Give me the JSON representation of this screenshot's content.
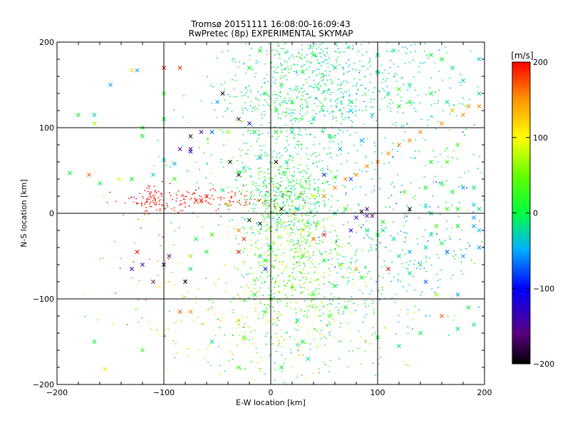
{
  "chart_data": {
    "type": "scatter",
    "title": "Tromsø 20151111 16:08:00-16:09:43",
    "subtitle": "RwPretec (8p) EXPERIMENTAL SKYMAP",
    "xlabel": "E-W location [km]",
    "ylabel": "N-S location [km]",
    "xlim": [
      -200,
      200
    ],
    "ylim": [
      -200,
      200
    ],
    "x_ticks": [
      -200,
      -100,
      0,
      100,
      200
    ],
    "y_ticks": [
      -200,
      -100,
      0,
      100,
      200
    ],
    "grid": true,
    "colorbar": {
      "label": "[m/s]",
      "range": [
        -200,
        200
      ],
      "ticks": [
        200,
        100,
        0,
        -100,
        -200
      ],
      "colormap": [
        "#000000",
        "#6a008a",
        "#0000ff",
        "#00c8ff",
        "#00ff00",
        "#ffff00",
        "#ff8000",
        "#ff0000"
      ]
    },
    "series": [
      {
        "marker": "x",
        "points": [
          {
            "x": -188,
            "y": 47,
            "v": 20
          },
          {
            "x": -180,
            "y": 115,
            "v": 20
          },
          {
            "x": -165,
            "y": 105,
            "v": 60
          },
          {
            "x": -165,
            "y": 115,
            "v": -20
          },
          {
            "x": -150,
            "y": 150,
            "v": -40
          },
          {
            "x": -130,
            "y": 167,
            "v": 100
          },
          {
            "x": -125,
            "y": 167,
            "v": -40
          },
          {
            "x": -120,
            "y": 90,
            "v": 20
          },
          {
            "x": -100,
            "y": 62,
            "v": -20
          },
          {
            "x": -90,
            "y": 58,
            "v": -40
          },
          {
            "x": -100,
            "y": 170,
            "v": 200
          },
          {
            "x": -85,
            "y": 170,
            "v": 180
          },
          {
            "x": -75,
            "y": 90,
            "v": -180
          },
          {
            "x": -65,
            "y": 95,
            "v": -120
          },
          {
            "x": -85,
            "y": 75,
            "v": -140
          },
          {
            "x": -75,
            "y": 75,
            "v": -160
          },
          {
            "x": -75,
            "y": 72,
            "v": -100
          },
          {
            "x": -55,
            "y": 95,
            "v": -60
          },
          {
            "x": -45,
            "y": 140,
            "v": -200
          },
          {
            "x": -50,
            "y": 130,
            "v": -40
          },
          {
            "x": -30,
            "y": 110,
            "v": -160
          },
          {
            "x": -20,
            "y": 105,
            "v": -120
          },
          {
            "x": -40,
            "y": 95,
            "v": 60
          },
          {
            "x": -38,
            "y": 60,
            "v": -200
          },
          {
            "x": -30,
            "y": 45,
            "v": -200
          },
          {
            "x": -30,
            "y": 48,
            "v": 20
          },
          {
            "x": -25,
            "y": 53,
            "v": -20
          },
          {
            "x": -10,
            "y": 65,
            "v": -40
          },
          {
            "x": 5,
            "y": 60,
            "v": -200
          },
          {
            "x": 15,
            "y": 60,
            "v": 0
          },
          {
            "x": -45,
            "y": 27,
            "v": 0
          },
          {
            "x": -60,
            "y": 20,
            "v": 200
          },
          {
            "x": -65,
            "y": 15,
            "v": 200
          },
          {
            "x": -70,
            "y": 15,
            "v": 180
          },
          {
            "x": -40,
            "y": 10,
            "v": 60
          },
          {
            "x": -20,
            "y": -8,
            "v": -200
          },
          {
            "x": -30,
            "y": -20,
            "v": 140
          },
          {
            "x": -25,
            "y": -30,
            "v": 180
          },
          {
            "x": -10,
            "y": -12,
            "v": -200
          },
          {
            "x": 10,
            "y": 5,
            "v": -200
          },
          {
            "x": 30,
            "y": -20,
            "v": 100
          },
          {
            "x": 40,
            "y": -30,
            "v": 160
          },
          {
            "x": 50,
            "y": -25,
            "v": 200
          },
          {
            "x": 75,
            "y": -20,
            "v": -100
          },
          {
            "x": 80,
            "y": -5,
            "v": -120
          },
          {
            "x": 90,
            "y": 5,
            "v": -140
          },
          {
            "x": 90,
            "y": -3,
            "v": -140
          },
          {
            "x": 95,
            "y": -3,
            "v": -160
          },
          {
            "x": 85,
            "y": 2,
            "v": -200
          },
          {
            "x": 130,
            "y": 5,
            "v": -200
          },
          {
            "x": 145,
            "y": 8,
            "v": -20
          },
          {
            "x": 160,
            "y": 35,
            "v": 20
          },
          {
            "x": 170,
            "y": 25,
            "v": 20
          },
          {
            "x": 180,
            "y": 30,
            "v": -40
          },
          {
            "x": 190,
            "y": -15,
            "v": -40
          },
          {
            "x": 175,
            "y": -15,
            "v": 20
          },
          {
            "x": 160,
            "y": -35,
            "v": 20
          },
          {
            "x": 145,
            "y": -40,
            "v": -20
          },
          {
            "x": 145,
            "y": -80,
            "v": -60
          },
          {
            "x": 155,
            "y": -95,
            "v": 60
          },
          {
            "x": 175,
            "y": -95,
            "v": -40
          },
          {
            "x": 185,
            "y": -110,
            "v": 20
          },
          {
            "x": 160,
            "y": -120,
            "v": 160
          },
          {
            "x": 170,
            "y": 120,
            "v": 120
          },
          {
            "x": 180,
            "y": 115,
            "v": 140
          },
          {
            "x": 185,
            "y": 125,
            "v": 140
          },
          {
            "x": 195,
            "y": 125,
            "v": 140
          },
          {
            "x": 160,
            "y": 105,
            "v": 140
          },
          {
            "x": 140,
            "y": 95,
            "v": 140
          },
          {
            "x": 130,
            "y": 85,
            "v": 140
          },
          {
            "x": 120,
            "y": 80,
            "v": 140
          },
          {
            "x": 110,
            "y": 70,
            "v": 140
          },
          {
            "x": 100,
            "y": 60,
            "v": 140
          },
          {
            "x": 90,
            "y": 55,
            "v": 140
          },
          {
            "x": 80,
            "y": 45,
            "v": 140
          },
          {
            "x": 70,
            "y": 40,
            "v": 140
          },
          {
            "x": 60,
            "y": 30,
            "v": 140
          },
          {
            "x": 50,
            "y": 20,
            "v": 140
          },
          {
            "x": 150,
            "y": 185,
            "v": 20
          },
          {
            "x": 160,
            "y": 180,
            "v": 20
          },
          {
            "x": 170,
            "y": 170,
            "v": 0
          },
          {
            "x": 195,
            "y": 180,
            "v": -20
          },
          {
            "x": 130,
            "y": 130,
            "v": 20
          },
          {
            "x": 120,
            "y": 125,
            "v": 20
          },
          {
            "x": 120,
            "y": 145,
            "v": 40
          },
          {
            "x": 75,
            "y": 120,
            "v": -20
          },
          {
            "x": 75,
            "y": 130,
            "v": 0
          },
          {
            "x": 95,
            "y": 115,
            "v": -20
          },
          {
            "x": 85,
            "y": 85,
            "v": -40
          },
          {
            "x": 65,
            "y": 75,
            "v": -40
          },
          {
            "x": 75,
            "y": 40,
            "v": -60
          },
          {
            "x": 50,
            "y": 45,
            "v": -80
          },
          {
            "x": 60,
            "y": 42,
            "v": 40
          },
          {
            "x": 40,
            "y": 20,
            "v": 80
          },
          {
            "x": 25,
            "y": 5,
            "v": -40
          },
          {
            "x": 60,
            "y": 0,
            "v": 0
          },
          {
            "x": 70,
            "y": 5,
            "v": 20
          },
          {
            "x": 90,
            "y": -20,
            "v": 0
          },
          {
            "x": 100,
            "y": -25,
            "v": 20
          },
          {
            "x": 115,
            "y": -30,
            "v": -20
          },
          {
            "x": 120,
            "y": -50,
            "v": 0
          },
          {
            "x": 110,
            "y": -65,
            "v": 200
          },
          {
            "x": 130,
            "y": -45,
            "v": -40
          },
          {
            "x": 130,
            "y": -70,
            "v": 0
          },
          {
            "x": 140,
            "y": -60,
            "v": 0
          },
          {
            "x": 165,
            "y": -45,
            "v": -60
          },
          {
            "x": 180,
            "y": -50,
            "v": -40
          },
          {
            "x": 195,
            "y": -40,
            "v": -40
          },
          {
            "x": 195,
            "y": -20,
            "v": -20
          },
          {
            "x": 190,
            "y": -5,
            "v": -40
          },
          {
            "x": 190,
            "y": 10,
            "v": -20
          },
          {
            "x": 190,
            "y": 30,
            "v": 0
          },
          {
            "x": 195,
            "y": 5,
            "v": 0
          },
          {
            "x": 175,
            "y": 5,
            "v": 20
          },
          {
            "x": 165,
            "y": 5,
            "v": 40
          },
          {
            "x": 165,
            "y": 60,
            "v": 40
          },
          {
            "x": 175,
            "y": 80,
            "v": 40
          },
          {
            "x": 150,
            "y": 60,
            "v": 20
          },
          {
            "x": 145,
            "y": 30,
            "v": 20
          },
          {
            "x": 125,
            "y": 25,
            "v": 40
          },
          {
            "x": 155,
            "y": -15,
            "v": 40
          },
          {
            "x": 150,
            "y": -25,
            "v": 0
          },
          {
            "x": 150,
            "y": 0,
            "v": 0
          },
          {
            "x": 105,
            "y": -20,
            "v": 0
          },
          {
            "x": 105,
            "y": -10,
            "v": 20
          },
          {
            "x": -110,
            "y": -80,
            "v": -160
          },
          {
            "x": -120,
            "y": -60,
            "v": -120
          },
          {
            "x": -130,
            "y": -65,
            "v": -120
          },
          {
            "x": -125,
            "y": -45,
            "v": 200
          },
          {
            "x": -100,
            "y": -60,
            "v": -180
          },
          {
            "x": -95,
            "y": -50,
            "v": -140
          },
          {
            "x": -80,
            "y": -80,
            "v": -200
          },
          {
            "x": -75,
            "y": -65,
            "v": 0
          },
          {
            "x": -75,
            "y": -50,
            "v": 60
          },
          {
            "x": -60,
            "y": -45,
            "v": 20
          },
          {
            "x": -70,
            "y": -30,
            "v": 20
          },
          {
            "x": -55,
            "y": -25,
            "v": 40
          },
          {
            "x": -30,
            "y": -45,
            "v": 200
          },
          {
            "x": -5,
            "y": -65,
            "v": -80
          },
          {
            "x": -5,
            "y": -55,
            "v": 20
          },
          {
            "x": -10,
            "y": -50,
            "v": 0
          },
          {
            "x": 0,
            "y": -40,
            "v": 20
          },
          {
            "x": 30,
            "y": -50,
            "v": 40
          },
          {
            "x": 50,
            "y": -55,
            "v": 20
          },
          {
            "x": 65,
            "y": -60,
            "v": 40
          },
          {
            "x": 80,
            "y": -65,
            "v": 120
          },
          {
            "x": 85,
            "y": -75,
            "v": 40
          },
          {
            "x": 60,
            "y": -85,
            "v": 20
          },
          {
            "x": 40,
            "y": -95,
            "v": 40
          },
          {
            "x": 20,
            "y": -85,
            "v": 60
          },
          {
            "x": 0,
            "y": -100,
            "v": 40
          },
          {
            "x": -5,
            "y": -115,
            "v": 40
          },
          {
            "x": -15,
            "y": -95,
            "v": 20
          },
          {
            "x": 25,
            "y": -125,
            "v": 0
          },
          {
            "x": 55,
            "y": -120,
            "v": 40
          },
          {
            "x": 70,
            "y": -110,
            "v": 20
          },
          {
            "x": -85,
            "y": -115,
            "v": 160
          },
          {
            "x": -75,
            "y": -115,
            "v": 140
          },
          {
            "x": -30,
            "y": -125,
            "v": 100
          },
          {
            "x": -25,
            "y": -145,
            "v": 40
          },
          {
            "x": -55,
            "y": -150,
            "v": 0
          },
          {
            "x": -30,
            "y": -180,
            "v": 40
          },
          {
            "x": -155,
            "y": -182,
            "v": 100
          },
          {
            "x": -165,
            "y": -150,
            "v": 20
          },
          {
            "x": 35,
            "y": -170,
            "v": 0
          },
          {
            "x": 30,
            "y": -150,
            "v": 20
          },
          {
            "x": -120,
            "y": -160,
            "v": 40
          },
          {
            "x": 10,
            "y": -180,
            "v": 20
          },
          {
            "x": 100,
            "y": -145,
            "v": 20
          },
          {
            "x": 120,
            "y": -155,
            "v": 0
          },
          {
            "x": 140,
            "y": -140,
            "v": 20
          },
          {
            "x": 175,
            "y": -135,
            "v": 0
          },
          {
            "x": 190,
            "y": -130,
            "v": 0
          },
          {
            "x": 40,
            "y": 185,
            "v": 20
          },
          {
            "x": 60,
            "y": 170,
            "v": 0
          },
          {
            "x": 30,
            "y": 165,
            "v": 20
          },
          {
            "x": 10,
            "y": 150,
            "v": 20
          },
          {
            "x": 20,
            "y": 130,
            "v": 20
          },
          {
            "x": 40,
            "y": 110,
            "v": -20
          },
          {
            "x": 55,
            "y": 90,
            "v": 0
          },
          {
            "x": 20,
            "y": 95,
            "v": 0
          },
          {
            "x": -10,
            "y": 190,
            "v": 20
          },
          {
            "x": -20,
            "y": 170,
            "v": 20
          },
          {
            "x": -5,
            "y": 140,
            "v": 20
          },
          {
            "x": 5,
            "y": 120,
            "v": 20
          },
          {
            "x": -15,
            "y": 95,
            "v": 20
          },
          {
            "x": 5,
            "y": 95,
            "v": 20
          },
          {
            "x": 100,
            "y": 165,
            "v": 0
          },
          {
            "x": 115,
            "y": 190,
            "v": 0
          },
          {
            "x": 100,
            "y": 185,
            "v": 0
          },
          {
            "x": 165,
            "y": 130,
            "v": 0
          },
          {
            "x": 150,
            "y": 140,
            "v": 20
          },
          {
            "x": 195,
            "y": 140,
            "v": 0
          },
          {
            "x": 180,
            "y": 155,
            "v": -20
          },
          {
            "x": 130,
            "y": 150,
            "v": 0
          },
          {
            "x": 110,
            "y": 140,
            "v": 0
          },
          {
            "x": -100,
            "y": 110,
            "v": 20
          },
          {
            "x": -120,
            "y": 100,
            "v": 20
          },
          {
            "x": -100,
            "y": 140,
            "v": 40
          },
          {
            "x": -110,
            "y": 45,
            "v": -20
          },
          {
            "x": -90,
            "y": 40,
            "v": 40
          },
          {
            "x": -130,
            "y": 40,
            "v": 20
          },
          {
            "x": -142,
            "y": 40,
            "v": 80
          },
          {
            "x": -160,
            "y": 35,
            "v": 20
          },
          {
            "x": -170,
            "y": 45,
            "v": 160
          }
        ]
      },
      {
        "marker": "dot",
        "points": []
      }
    ]
  }
}
